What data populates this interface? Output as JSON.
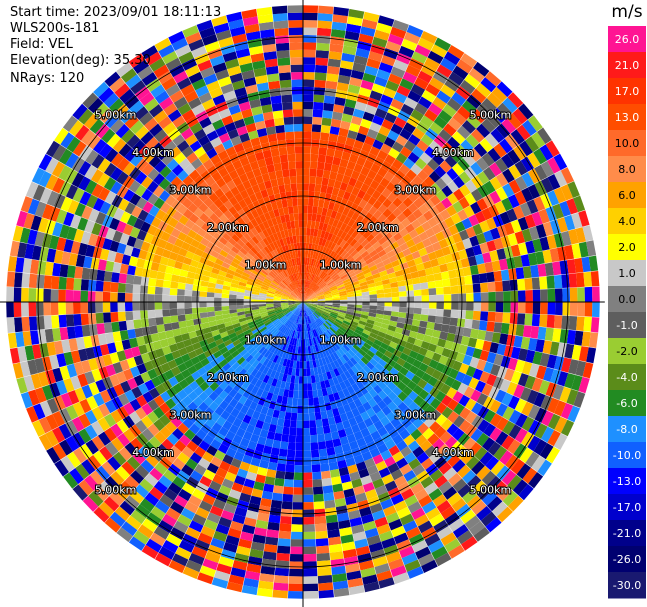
{
  "header": {
    "start_time": "Start time: 2023/09/01 18:11:13",
    "instrument": "WLS200s-181",
    "field": "Field: VEL",
    "elevation": "Elevation(deg): 35.30",
    "nrays": "NRays: 120"
  },
  "chart_data": {
    "type": "heatmap",
    "subtype": "polar PPI (plan position indicator)",
    "title": "",
    "field": "VEL",
    "unit": "m/s",
    "n_rays": 120,
    "range_rings_km": [
      1,
      2,
      3,
      4,
      5
    ],
    "ring_labels": [
      "1.00km",
      "2.00km",
      "3.00km",
      "4.00km",
      "5.00km"
    ],
    "max_range_km": 5.6,
    "clean_data_range_km": 3.2,
    "colorbar": {
      "ticks": [
        "26.0",
        "21.0",
        "17.0",
        "13.0",
        "10.0",
        "8.0",
        "6.0",
        "4.0",
        "2.0",
        "1.0",
        "0.0",
        "-1.0",
        "-2.0",
        "-4.0",
        "-6.0",
        "-8.0",
        "-10.0",
        "-13.0",
        "-17.0",
        "-21.0",
        "-26.0",
        "-30.0"
      ],
      "colors": [
        "#ff1493",
        "#ff1a1a",
        "#ff3300",
        "#ff4d00",
        "#ff6a2a",
        "#ff8c4a",
        "#ffa200",
        "#ffd000",
        "#ffff00",
        "#c8c8c8",
        "#808080",
        "#5e5e5e",
        "#9acd32",
        "#5b8c1a",
        "#228b22",
        "#1e90ff",
        "#1060ff",
        "#0000ff",
        "#0000cd",
        "#00008b",
        "#000070",
        "#191970"
      ]
    },
    "velocity_pattern": {
      "north_sector_mps": 13,
      "south_sector_mps": -13,
      "east_west_mps": 0
    }
  }
}
